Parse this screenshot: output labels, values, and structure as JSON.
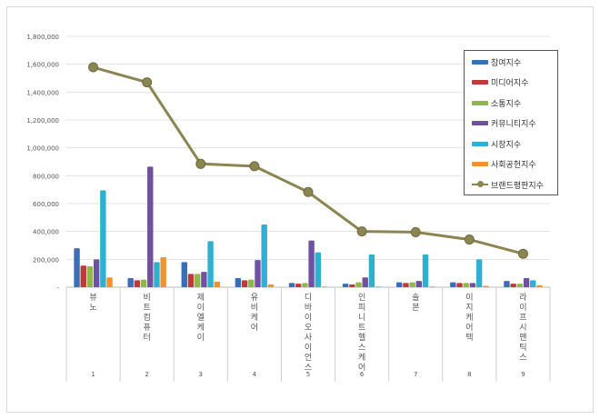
{
  "chart_data": {
    "type": "bar",
    "title": "",
    "xlabel": "",
    "ylabel": "",
    "ylim": [
      0,
      1800000
    ],
    "y_ticks": [
      "-",
      "200,000",
      "400,000",
      "600,000",
      "800,000",
      "1,000,000",
      "1,200,000",
      "1,400,000",
      "1,600,000",
      "1,800,000"
    ],
    "grid": true,
    "legend_position": "top-right",
    "categories": [
      "뷰노",
      "비트컴퓨터",
      "제이엘케이",
      "유비케어",
      "디바이오사이언스",
      "인피니트헬스케어",
      "솔본",
      "이지케어텍",
      "라이프시맨틱스"
    ],
    "ranks": [
      "1",
      "2",
      "3",
      "4",
      "5",
      "6",
      "7",
      "8",
      "9"
    ],
    "series": [
      {
        "name": "참여지수",
        "type": "bar",
        "color": "#3a6fb8",
        "values": [
          280000,
          65000,
          180000,
          65000,
          30000,
          25000,
          35000,
          35000,
          45000
        ]
      },
      {
        "name": "미디어지수",
        "type": "bar",
        "color": "#c0393a",
        "values": [
          155000,
          50000,
          95000,
          50000,
          25000,
          20000,
          30000,
          30000,
          25000
        ]
      },
      {
        "name": "소통지수",
        "type": "bar",
        "color": "#8fb84a",
        "values": [
          150000,
          55000,
          95000,
          55000,
          30000,
          35000,
          35000,
          30000,
          25000
        ]
      },
      {
        "name": "커뮤니티지수",
        "type": "bar",
        "color": "#7050a0",
        "values": [
          200000,
          865000,
          110000,
          195000,
          335000,
          70000,
          45000,
          30000,
          65000
        ]
      },
      {
        "name": "시장지수",
        "type": "bar",
        "color": "#2fb0cf",
        "values": [
          695000,
          180000,
          330000,
          450000,
          250000,
          235000,
          235000,
          200000,
          50000
        ]
      },
      {
        "name": "사회공헌지수",
        "type": "bar",
        "color": "#f0922e",
        "values": [
          70000,
          215000,
          40000,
          20000,
          5000,
          5000,
          5000,
          10000,
          15000
        ]
      },
      {
        "name": "브랜드평판지수",
        "type": "line",
        "color": "#8b8552",
        "values": [
          1578000,
          1470000,
          885000,
          868000,
          683000,
          400000,
          395000,
          342000,
          240000
        ]
      }
    ]
  }
}
